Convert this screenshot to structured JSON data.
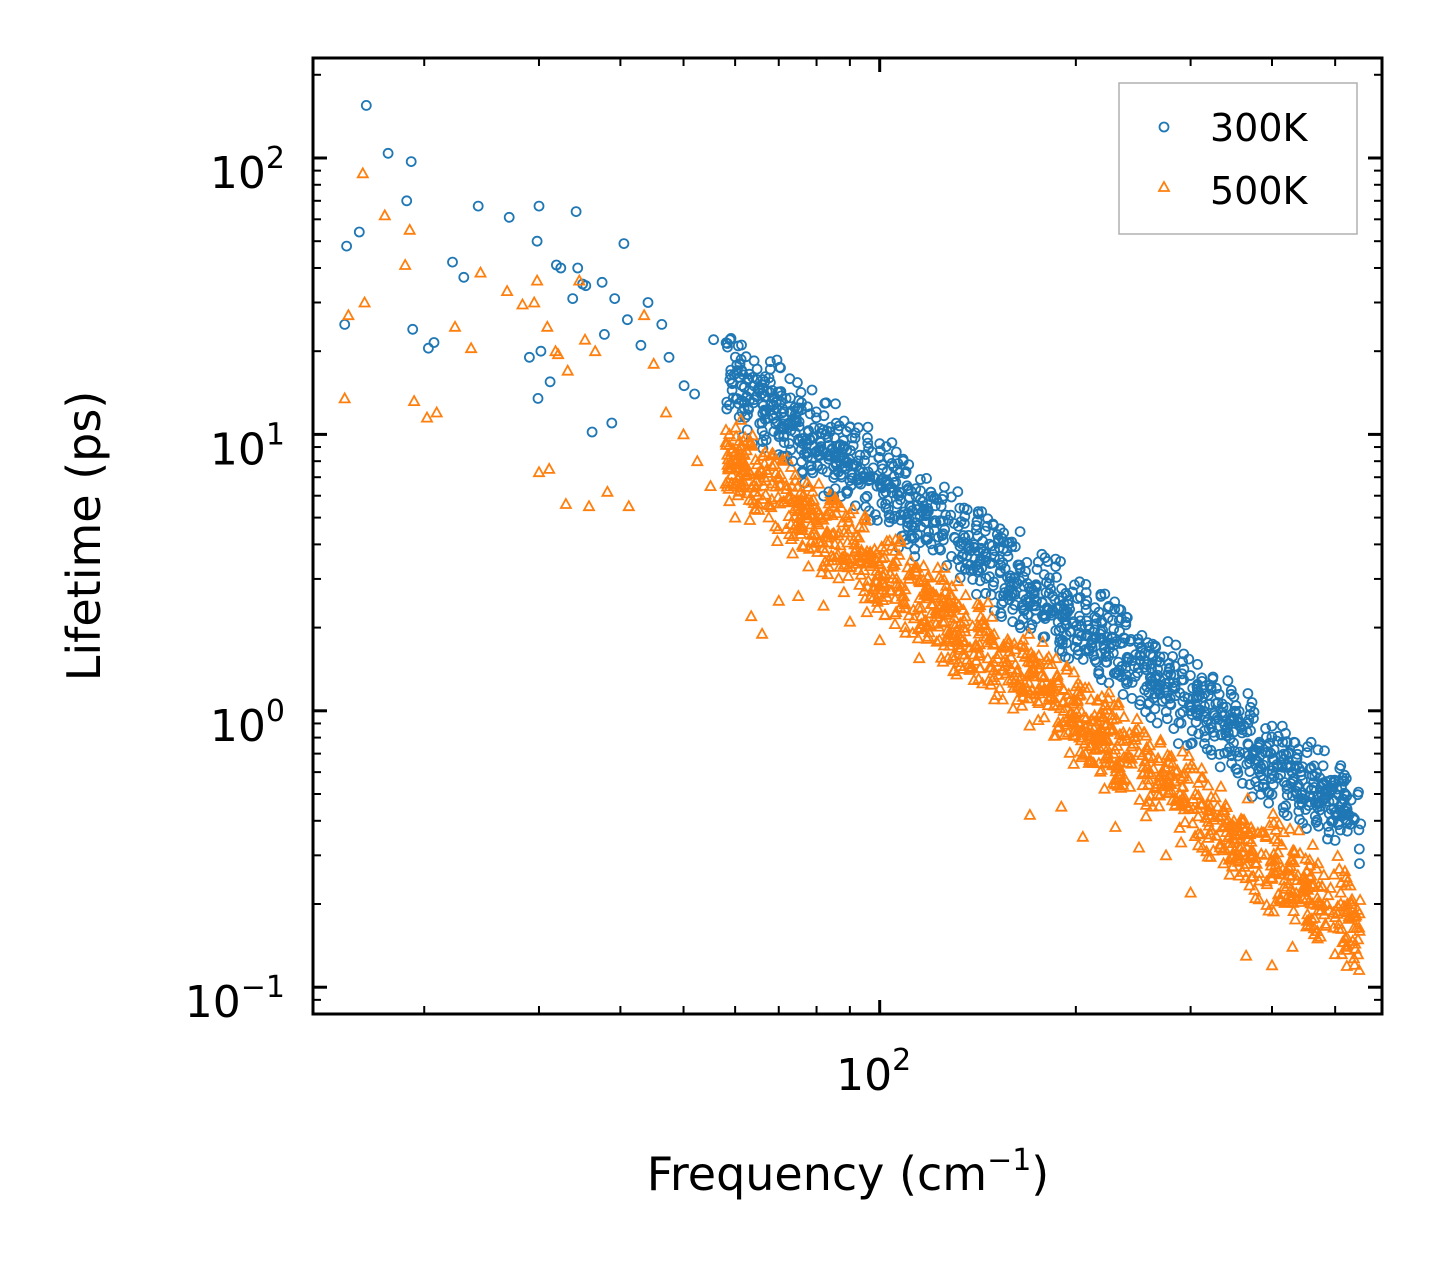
{
  "chart_data": {
    "type": "scatter",
    "title": "",
    "xlabel": "Frequency (cm",
    "xlabel_sup": "−1",
    "xlabel_close": ")",
    "ylabel": "Lifetime (ps)",
    "xscale": "log",
    "yscale": "log",
    "xlim": [
      13.5,
      590
    ],
    "ylim": [
      0.08,
      230
    ],
    "x_major_ticks": [
      {
        "value": 100,
        "base": "10",
        "exp": "2"
      }
    ],
    "y_major_ticks": [
      {
        "value": 0.1,
        "base": "10",
        "exp": "−1"
      },
      {
        "value": 1,
        "base": "10",
        "exp": "0"
      },
      {
        "value": 10,
        "base": "10",
        "exp": "1"
      },
      {
        "value": 100,
        "base": "10",
        "exp": "2"
      }
    ],
    "legend_position": "top-right",
    "series": [
      {
        "name": "300K",
        "marker": "circle",
        "color": "#1f77b4",
        "points": [
          [
            16.3,
            155
          ],
          [
            17.6,
            104
          ],
          [
            19.1,
            97
          ],
          [
            18.8,
            70
          ],
          [
            15.9,
            54
          ],
          [
            15.2,
            48
          ],
          [
            15.1,
            25
          ],
          [
            19.2,
            24
          ],
          [
            20.3,
            20.5
          ],
          [
            20.7,
            21.5
          ],
          [
            22.1,
            42
          ],
          [
            23.0,
            37
          ],
          [
            24.2,
            67
          ],
          [
            27.0,
            61
          ],
          [
            29.8,
            50
          ],
          [
            30.0,
            67
          ],
          [
            29.0,
            19
          ],
          [
            30.2,
            20
          ],
          [
            29.9,
            13.5
          ],
          [
            31.2,
            15.5
          ],
          [
            31.9,
            41
          ],
          [
            32.4,
            40
          ],
          [
            33.8,
            31
          ],
          [
            34.4,
            40
          ],
          [
            35.0,
            35
          ],
          [
            35.4,
            34.5
          ],
          [
            34.2,
            64
          ],
          [
            37.5,
            35.5
          ],
          [
            39.2,
            31
          ],
          [
            36.2,
            10.2
          ],
          [
            37.8,
            23
          ],
          [
            38.8,
            11
          ],
          [
            40.5,
            49
          ],
          [
            41.0,
            26
          ],
          [
            43.0,
            21
          ],
          [
            44.1,
            30
          ],
          [
            46.3,
            25
          ],
          [
            47.5,
            19
          ],
          [
            50.1,
            15
          ],
          [
            52.0,
            14
          ],
          [
            55.6,
            22
          ],
          [
            58.9,
            22
          ],
          [
            61.0,
            18
          ],
          [
            64.0,
            13
          ],
          [
            66.0,
            11
          ],
          [
            70.0,
            10
          ],
          [
            73.5,
            8
          ],
          [
            77.0,
            9.5
          ],
          [
            79.0,
            9.8
          ],
          [
            83.5,
            6.2
          ],
          [
            86.3,
            10.4
          ],
          [
            101.0,
            7.5
          ],
          [
            110.5,
            5.2
          ],
          [
            122.0,
            4.8
          ],
          [
            138.0,
            3.8
          ],
          [
            150.0,
            3.6
          ],
          [
            160.0,
            2.1
          ],
          [
            190.0,
            2.0
          ],
          [
            215.0,
            1.5
          ],
          [
            260.0,
            1.25
          ],
          [
            300.0,
            1.0
          ],
          [
            340.0,
            0.85
          ],
          [
            375.0,
            0.7
          ],
          [
            400.0,
            0.88
          ],
          [
            430.0,
            0.6
          ],
          [
            480.0,
            0.55
          ],
          [
            520.0,
            0.45
          ],
          [
            545.0,
            0.28
          ]
        ]
      },
      {
        "name": "500K",
        "marker": "triangle",
        "color": "#ff7f0e",
        "points": [
          [
            16.1,
            88
          ],
          [
            17.4,
            62
          ],
          [
            19.0,
            55
          ],
          [
            18.7,
            41
          ],
          [
            16.2,
            30
          ],
          [
            15.3,
            27
          ],
          [
            15.1,
            13.5
          ],
          [
            19.3,
            13.2
          ],
          [
            20.2,
            11.5
          ],
          [
            20.9,
            12
          ],
          [
            22.3,
            24.5
          ],
          [
            23.6,
            20.5
          ],
          [
            24.4,
            38.5
          ],
          [
            26.8,
            33
          ],
          [
            28.3,
            29.5
          ],
          [
            29.5,
            30
          ],
          [
            29.8,
            36
          ],
          [
            30.9,
            24.5
          ],
          [
            31.8,
            20
          ],
          [
            32.1,
            19.5
          ],
          [
            33.2,
            17
          ],
          [
            34.6,
            36
          ],
          [
            35.3,
            22
          ],
          [
            36.6,
            20
          ],
          [
            30.0,
            7.3
          ],
          [
            31.1,
            7.5
          ],
          [
            33.0,
            5.6
          ],
          [
            35.8,
            5.5
          ],
          [
            38.2,
            6.2
          ],
          [
            41.2,
            5.5
          ],
          [
            43.5,
            27
          ],
          [
            45.0,
            18
          ],
          [
            47.0,
            12
          ],
          [
            50.0,
            10
          ],
          [
            52.5,
            8
          ],
          [
            55.0,
            6.5
          ],
          [
            60.0,
            5
          ],
          [
            63.5,
            2.2
          ],
          [
            66.0,
            1.9
          ],
          [
            70.0,
            2.5
          ],
          [
            75.0,
            2.6
          ],
          [
            82.0,
            2.4
          ],
          [
            90.0,
            2.1
          ],
          [
            100.0,
            1.8
          ],
          [
            115.0,
            1.55
          ],
          [
            130.0,
            1.4
          ],
          [
            150.0,
            1.1
          ],
          [
            170.0,
            0.42
          ],
          [
            190.0,
            0.45
          ],
          [
            205.0,
            0.35
          ],
          [
            230.0,
            0.38
          ],
          [
            250.0,
            0.32
          ],
          [
            275.0,
            0.3
          ],
          [
            300.0,
            0.22
          ],
          [
            330.0,
            0.45
          ],
          [
            365.0,
            0.13
          ],
          [
            400.0,
            0.12
          ],
          [
            430.0,
            0.14
          ],
          [
            470.0,
            0.15
          ],
          [
            520.0,
            0.14
          ],
          [
            545.0,
            0.16
          ]
        ]
      }
    ]
  }
}
